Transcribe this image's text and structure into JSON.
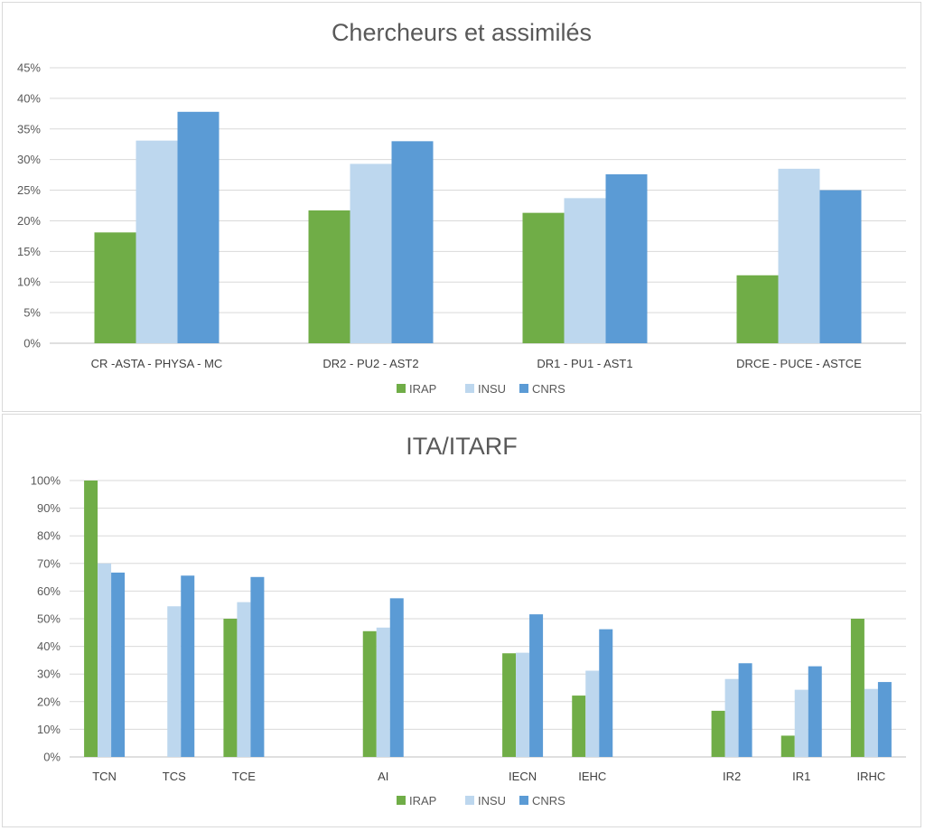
{
  "chart_data": [
    {
      "type": "bar",
      "title": "Chercheurs et assimilés",
      "xlabel": "",
      "ylabel": "",
      "ylim": [
        0,
        45
      ],
      "yticks": [
        "0%",
        "5%",
        "10%",
        "15%",
        "20%",
        "25%",
        "30%",
        "35%",
        "40%",
        "45%"
      ],
      "grid": true,
      "legend_position": "bottom",
      "categories": [
        "CR -ASTA - PHYSA - MC",
        "DR2 - PU2 - AST2",
        "DR1 - PU1 - AST1",
        "DRCE - PUCE - ASTCE"
      ],
      "series": [
        {
          "name": "IRAP",
          "color": "#70ad47",
          "values": [
            18.1,
            21.7,
            21.3,
            11.1
          ]
        },
        {
          "name": "INSU",
          "color": "#bdd7ee",
          "values": [
            33.1,
            29.3,
            23.7,
            28.5
          ]
        },
        {
          "name": "CNRS",
          "color": "#5b9bd5",
          "values": [
            37.8,
            33.0,
            27.6,
            25.0
          ]
        }
      ]
    },
    {
      "type": "bar",
      "title": "ITA/ITARF",
      "xlabel": "",
      "ylabel": "",
      "ylim": [
        0,
        100
      ],
      "yticks": [
        "0%",
        "10%",
        "20%",
        "30%",
        "40%",
        "50%",
        "60%",
        "70%",
        "80%",
        "90%",
        "100%"
      ],
      "grid": true,
      "legend_position": "bottom",
      "categories": [
        "TCN",
        "TCS",
        "TCE",
        "",
        "AI",
        "",
        "IECN",
        "IEHC",
        "",
        "IR2",
        "IR1",
        "IRHC"
      ],
      "series": [
        {
          "name": "IRAP",
          "color": "#70ad47",
          "values": [
            100,
            0,
            50,
            null,
            45.5,
            null,
            37.5,
            22.2,
            null,
            16.7,
            7.7,
            50
          ]
        },
        {
          "name": "INSU",
          "color": "#bdd7ee",
          "values": [
            70,
            54.5,
            56,
            null,
            46.8,
            null,
            37.7,
            31.2,
            null,
            28.2,
            24.3,
            24.6
          ]
        },
        {
          "name": "CNRS",
          "color": "#5b9bd5",
          "values": [
            66.7,
            65.6,
            65.1,
            null,
            57.4,
            null,
            51.6,
            46.2,
            null,
            33.9,
            32.8,
            27.1
          ]
        }
      ]
    }
  ]
}
